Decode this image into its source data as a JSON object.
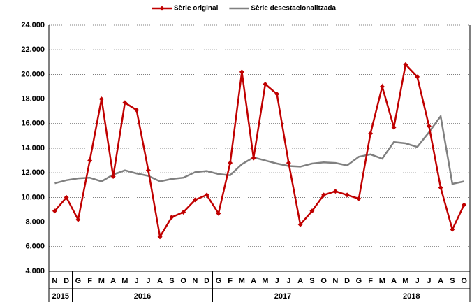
{
  "chart_data": {
    "type": "line",
    "category_groups": [
      {
        "label": "2015",
        "categories": [
          "N",
          "D"
        ]
      },
      {
        "label": "2016",
        "categories": [
          "G",
          "F",
          "M",
          "A",
          "M",
          "J",
          "J",
          "A",
          "S",
          "O",
          "N",
          "D"
        ]
      },
      {
        "label": "2017",
        "categories": [
          "G",
          "F",
          "M",
          "A",
          "M",
          "J",
          "J",
          "A",
          "S",
          "O",
          "N",
          "D"
        ]
      },
      {
        "label": "2018",
        "categories": [
          "G",
          "F",
          "M",
          "A",
          "M",
          "J",
          "J",
          "A",
          "S",
          "O"
        ]
      }
    ],
    "series": [
      {
        "name": "Sèrie original",
        "color": "#c00000",
        "marker": true,
        "values": [
          8900,
          10000,
          8200,
          13000,
          18000,
          11700,
          17700,
          17100,
          12200,
          6800,
          8400,
          8800,
          9800,
          10200,
          8700,
          12800,
          20200,
          13200,
          19200,
          18400,
          12800,
          7800,
          8900,
          10200,
          10500,
          10200,
          9900,
          15200,
          19000,
          15700,
          20800,
          19800,
          15800,
          10800,
          7400,
          9400
        ]
      },
      {
        "name": "Sèrie desestacionalitzada",
        "color": "#808080",
        "marker": false,
        "values": [
          11150,
          11400,
          11550,
          11600,
          11300,
          11850,
          12200,
          11950,
          11750,
          11300,
          11500,
          11600,
          12050,
          12150,
          11900,
          11800,
          12700,
          13250,
          13000,
          12750,
          12550,
          12500,
          12750,
          12850,
          12800,
          12600,
          13300,
          13500,
          13150,
          14500,
          14400,
          14100,
          15300,
          16600,
          11100,
          11300
        ]
      }
    ],
    "ylim": [
      4000,
      24000
    ],
    "yticks": [
      {
        "value": 4000,
        "label": "4.000"
      },
      {
        "value": 6000,
        "label": "6.000"
      },
      {
        "value": 8000,
        "label": "8.000"
      },
      {
        "value": 10000,
        "label": "10.000"
      },
      {
        "value": 12000,
        "label": "12.000"
      },
      {
        "value": 14000,
        "label": "14.000"
      },
      {
        "value": 16000,
        "label": "16.000"
      },
      {
        "value": 18000,
        "label": "18.000"
      },
      {
        "value": 20000,
        "label": "20.000"
      },
      {
        "value": 22000,
        "label": "22.000"
      },
      {
        "value": 24000,
        "label": "24.000"
      }
    ],
    "grid": true,
    "legend": "top"
  }
}
